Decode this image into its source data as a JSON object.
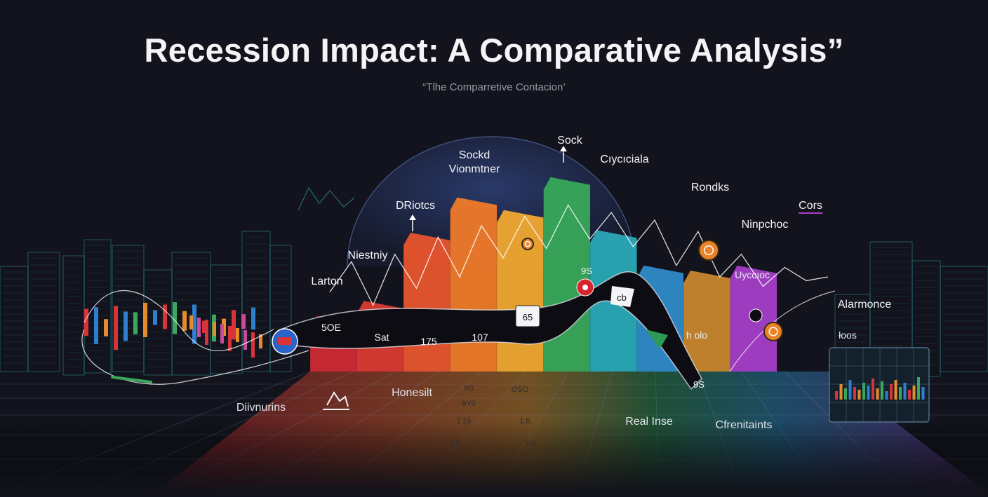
{
  "header": {
    "title": "Recession Impact: A Comparative Analysis”",
    "subtitle": "“Tlhe Comparretive Contacion’"
  },
  "chart_data": {
    "type": "bar",
    "title": "Recession Impact: A Comparative Analysis”",
    "subtitle": "“Tlhe Comparretive Contacion’",
    "xlabel": "",
    "ylabel": "",
    "grid": true,
    "legend": "none",
    "ylim": [
      0,
      100
    ],
    "categories": [
      "Larton",
      "Niestniy",
      "DRiotcs",
      "Sockd Vionmtner",
      "Sock",
      "Cıycıciala",
      "Rondks",
      "Ninpchoc",
      "Uyccıoc",
      "Alarmonce"
    ],
    "values": [
      22,
      28,
      55,
      69,
      64,
      77,
      56,
      42,
      40,
      42
    ],
    "series_colors": [
      "#cf2a35",
      "#d93a33",
      "#e8552d",
      "#ef7a2a",
      "#f0a830",
      "#38a85a",
      "#2aa9b7",
      "#2f8ac8",
      "#c8862d",
      "#a73ec8"
    ],
    "top_labels": [
      "Larton",
      "Niestniy",
      "DRiotcs",
      "Sockd\nVionmtner",
      "Sock",
      "Cıycıciala",
      "Rondks",
      "Ninpchoc",
      "Cors",
      "Alarmonce"
    ],
    "inner_labels": [
      {
        "text": "Uyccıoc",
        "bar": 8
      },
      {
        "text": "h olo",
        "bar": 6
      },
      {
        "text": "łoos",
        "bar": 9
      }
    ],
    "band_labels": [
      "5OE",
      "Sat",
      "175",
      "107"
    ],
    "badges": [
      "65",
      "9S",
      "cb",
      "9S"
    ],
    "floor_labels": [
      "Diivnurins",
      "Honesilt",
      "Real Inse",
      "Cfrenitaints"
    ],
    "floor_numbers": [
      "9S",
      "9Y0",
      "OSO",
      "1'19",
      "1:8",
      "2.9",
      "7.0"
    ],
    "overlay_line": [
      0.42,
      0.58,
      0.35,
      0.62,
      0.44,
      0.71,
      0.5,
      0.77,
      0.6,
      0.82,
      0.65,
      0.88,
      0.7,
      0.84,
      0.66,
      0.8,
      0.56,
      0.74,
      0.5,
      0.62,
      0.45,
      0.55,
      0.48,
      0.5
    ],
    "mini_bars": [
      {
        "value": 0.55,
        "color": "#d9333a"
      },
      {
        "value": 0.75,
        "color": "#2f7fd0"
      },
      {
        "value": 0.35,
        "color": "#e58b2c"
      },
      {
        "value": 0.9,
        "color": "#d9333a"
      },
      {
        "value": 0.6,
        "color": "#2f7fd0"
      },
      {
        "value": 0.45,
        "color": "#3aa85c"
      },
      {
        "value": 0.7,
        "color": "#e58b2c"
      },
      {
        "value": 0.3,
        "color": "#2f7fd0"
      },
      {
        "value": 0.5,
        "color": "#d9333a"
      },
      {
        "value": 0.65,
        "color": "#3aa85c"
      },
      {
        "value": 0.4,
        "color": "#e58b2c"
      },
      {
        "value": 0.8,
        "color": "#2f7fd0"
      },
      {
        "value": 0.25,
        "color": "#d9333a"
      },
      {
        "value": 0.55,
        "color": "#3aa85c"
      },
      {
        "value": 0.35,
        "color": "#e58b2c"
      },
      {
        "value": 0.6,
        "color": "#d9333a"
      },
      {
        "value": 0.3,
        "color": "#c94a9a"
      },
      {
        "value": 0.45,
        "color": "#2f7fd0"
      }
    ],
    "right_panel_bars": [
      0.3,
      0.55,
      0.4,
      0.7,
      0.45,
      0.35,
      0.6,
      0.5,
      0.75,
      0.4,
      0.65,
      0.3,
      0.55,
      0.7,
      0.45,
      0.6,
      0.35,
      0.5,
      0.8,
      0.45
    ],
    "accent_colors": {
      "background": "#12131c",
      "city": "#2e8f9a",
      "band": "#0c0c12",
      "band_edge": "#e8e8ee"
    }
  }
}
